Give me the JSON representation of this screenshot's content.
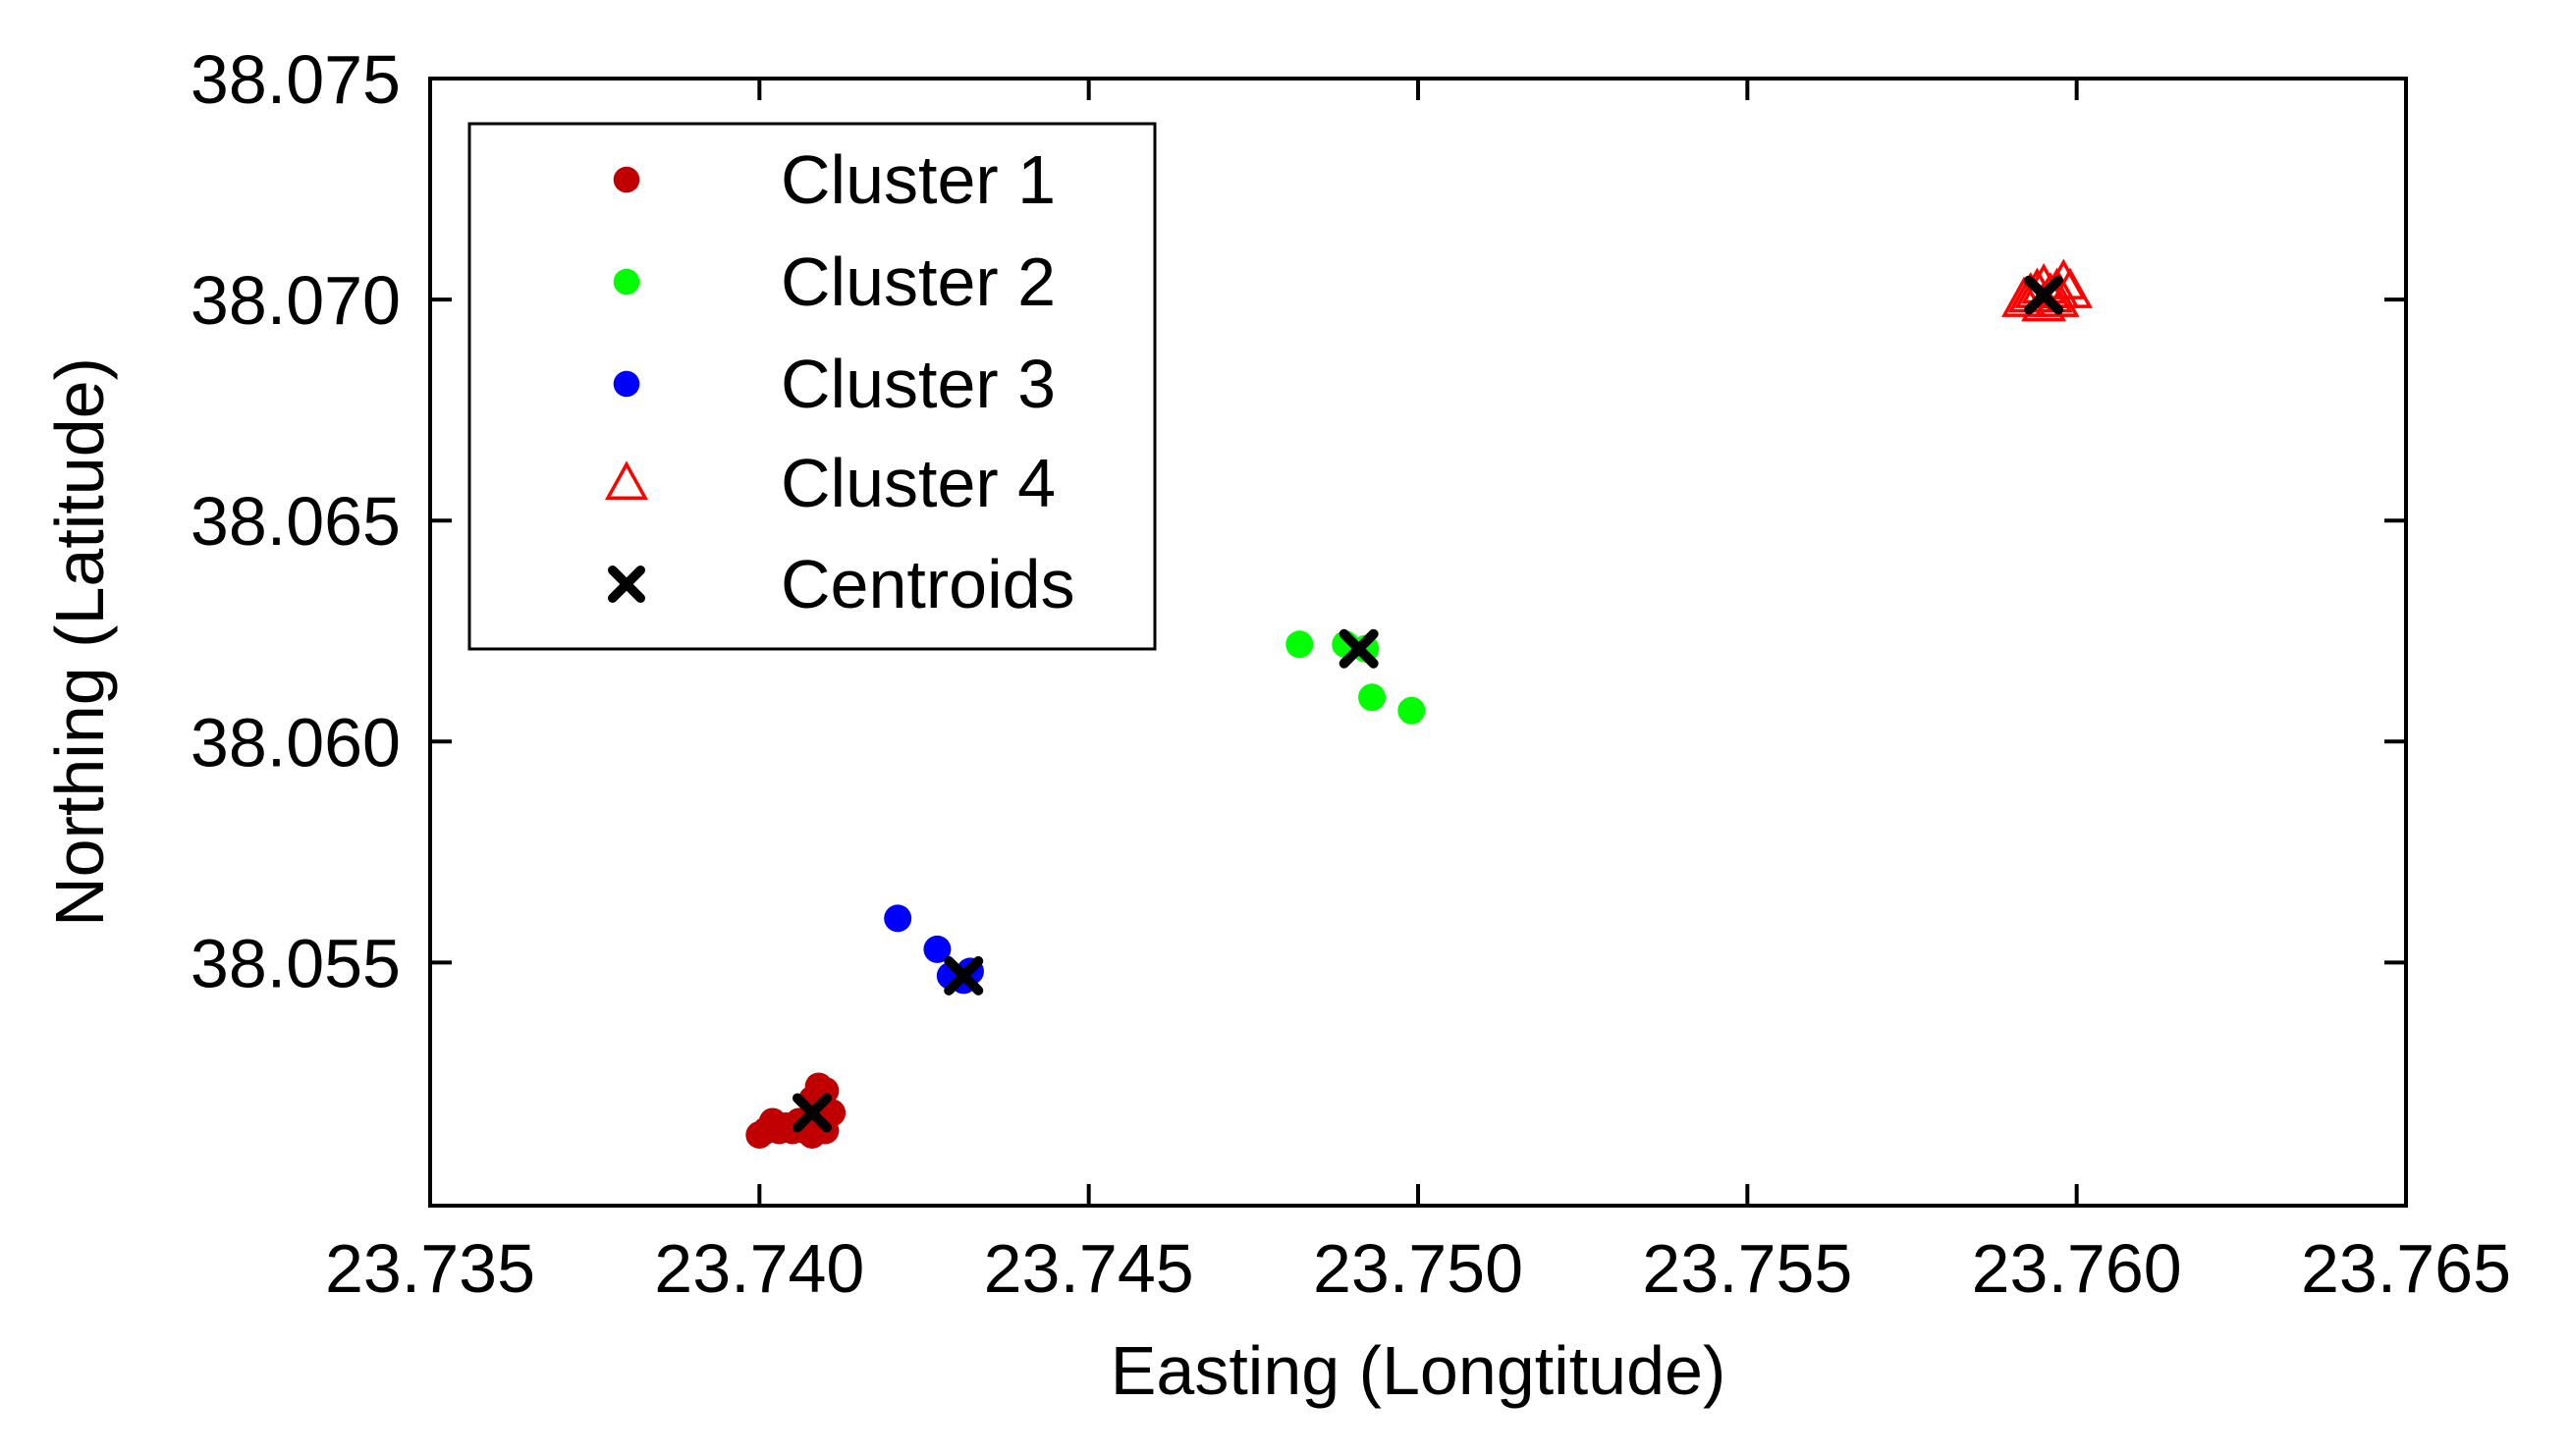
{
  "chart_data": {
    "type": "scatter",
    "title": "",
    "xlabel": "Easting (Longtitude)",
    "ylabel": "Northing (Latitude)",
    "xlim": [
      23.735,
      23.765
    ],
    "ylim": [
      38.0495,
      38.075
    ],
    "xticks": [
      23.735,
      23.74,
      23.745,
      23.75,
      23.755,
      23.76,
      23.765
    ],
    "xtick_labels": [
      "23.735",
      "23.740",
      "23.745",
      "23.750",
      "23.755",
      "23.760",
      "23.765"
    ],
    "yticks": [
      38.055,
      38.06,
      38.065,
      38.07,
      38.075
    ],
    "ytick_labels": [
      "38.055",
      "38.060",
      "38.065",
      "38.070",
      "38.075"
    ],
    "grid": false,
    "legend_position": "top-left",
    "series": [
      {
        "name": "Cluster 1",
        "marker": "dot",
        "color": "#c00000",
        "x": [
          23.74,
          23.7401,
          23.7402,
          23.7403,
          23.7404,
          23.7405,
          23.7406,
          23.7407,
          23.7408,
          23.7409,
          23.741,
          23.7409,
          23.7411,
          23.741,
          23.7408
        ],
        "y": [
          38.0511,
          38.0512,
          38.0514,
          38.0512,
          38.0513,
          38.0512,
          38.0514,
          38.0512,
          38.0511,
          38.0522,
          38.0521,
          38.0513,
          38.0516,
          38.0512,
          38.0519
        ]
      },
      {
        "name": "Cluster 2",
        "marker": "dot",
        "color": "#00ff00",
        "x": [
          23.7482,
          23.7489,
          23.7492,
          23.7493,
          23.7499
        ],
        "y": [
          38.0622,
          38.0622,
          38.0621,
          38.061,
          38.0607
        ]
      },
      {
        "name": "Cluster 3",
        "marker": "dot",
        "color": "#0000ff",
        "x": [
          23.7421,
          23.7427,
          23.7429,
          23.7431,
          23.7432
        ],
        "y": [
          38.056,
          38.0553,
          38.0547,
          38.0546,
          38.0548
        ]
      },
      {
        "name": "Cluster 4",
        "marker": "triangle-open",
        "color": "#ff0000",
        "x": [
          23.7592,
          23.7593,
          23.7594,
          23.7595,
          23.7596,
          23.7597,
          23.7598,
          23.7599,
          23.7595,
          23.7597
        ],
        "y": [
          38.07,
          38.0701,
          38.0702,
          38.0703,
          38.0701,
          38.0702,
          38.0704,
          38.0702,
          38.0699,
          38.07
        ]
      },
      {
        "name": "Centroids",
        "marker": "x-bold",
        "color": "#000000",
        "x": [
          23.7408,
          23.7491,
          23.7431,
          23.7595
        ],
        "y": [
          38.0516,
          38.0621,
          38.0547,
          38.0701
        ]
      }
    ]
  }
}
